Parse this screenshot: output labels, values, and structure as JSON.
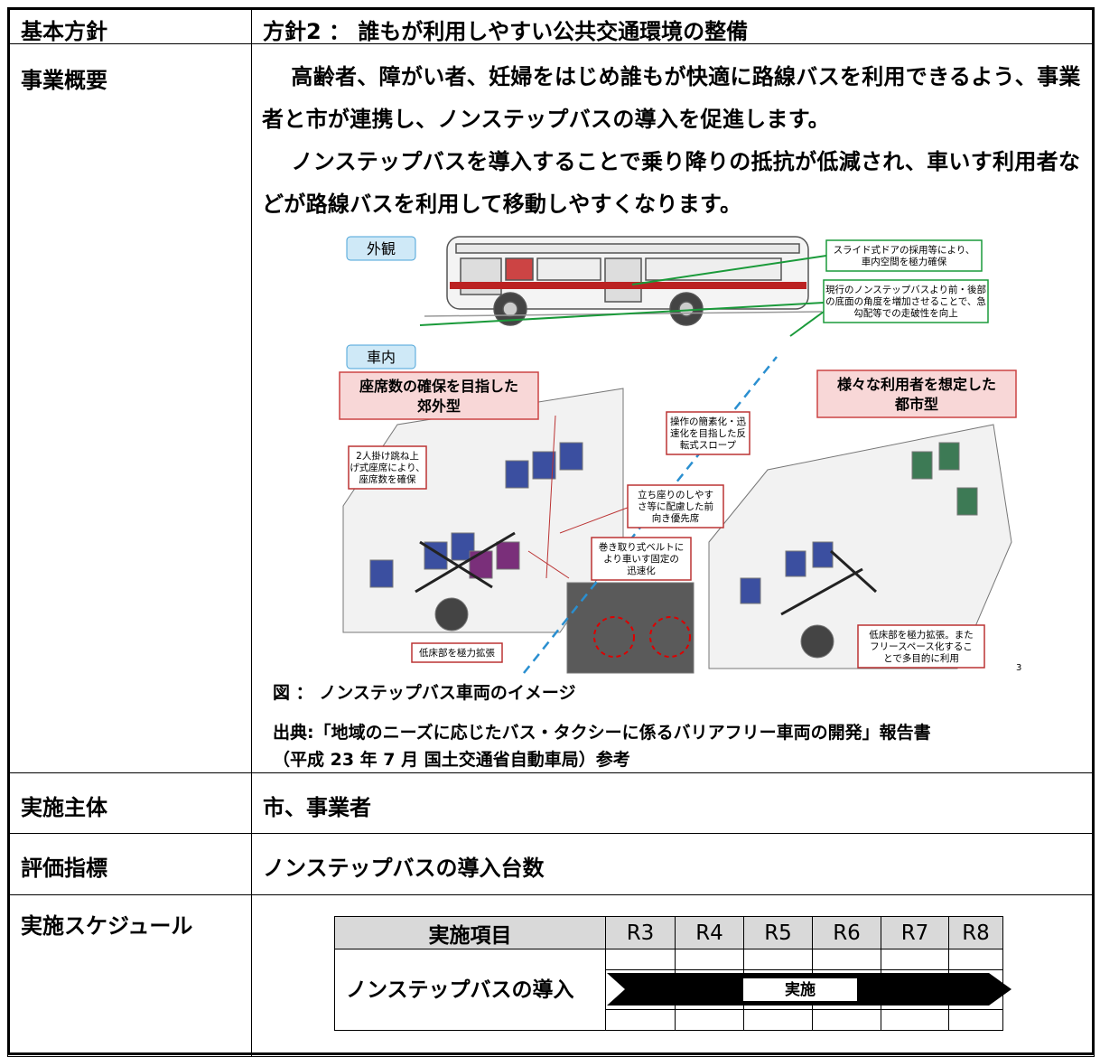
{
  "policy": {
    "label": "基本方針",
    "text": "方針2 ： 誰もが利用しやすい公共交通環境の整備"
  },
  "overview": {
    "label": "事業概要",
    "paragraphs": [
      "高齢者、障がい者、妊婦をはじめ誰もが快適に路線バスを利用できるよう、事業者と市が連携し、ノンステップバスの導入を促進します。",
      "ノンステップバスを導入することで乗り降りの抵抗が低減され、車いす利用者などが路線バスを利用して移動しやすくなります。"
    ],
    "figure": {
      "exterior": "外観",
      "interior": "車内",
      "green_callouts": [
        [
          "スライド式ドアの採用等により、",
          "車内空間を極力確保"
        ],
        [
          "現行のノンステップバスより前・後部",
          "の底面の角度を増加させることで、急",
          "勾配等での走破性を向上"
        ]
      ],
      "banners": [
        [
          "座席数の確保を目指した",
          "郊外型"
        ],
        [
          "様々な利用者を想定した",
          "都市型"
        ]
      ],
      "red_callouts": [
        [
          "2人掛け跳ね上",
          "げ式座席により、",
          "座席数を確保"
        ],
        [
          "操作の簡素化・迅",
          "速化を目指した反",
          "転式スロープ"
        ],
        [
          "立ち座りのしやす",
          "さ等に配慮した前",
          "向き優先席"
        ],
        [
          "巻き取り式ベルトに",
          "より車いす固定の",
          "迅速化"
        ],
        [
          "低床部を極力拡張"
        ],
        [
          "低床部を極力拡張。また",
          "フリースペース化するこ",
          "とで多目的に利用"
        ]
      ],
      "page_number": "3",
      "caption": "図 ： ノンステップバス車両のイメージ",
      "source": [
        "出典:「地域のニーズに応じたバス・タクシーに係るバリアフリー車両の開発」報告書",
        "（平成 23 年 7 月 国土交通省自動車局）参考"
      ]
    }
  },
  "implementer": {
    "label": "実施主体",
    "text": "市、事業者"
  },
  "indicator": {
    "label": "評価指標",
    "text": "ノンステップバスの導入台数"
  },
  "schedule": {
    "label": "実施スケジュール",
    "table": {
      "header": [
        "実施項目",
        "R3",
        "R4",
        "R5",
        "R6",
        "R7",
        "R8"
      ],
      "item": "ノンステップバスの導入",
      "bar_label": "実施"
    }
  }
}
